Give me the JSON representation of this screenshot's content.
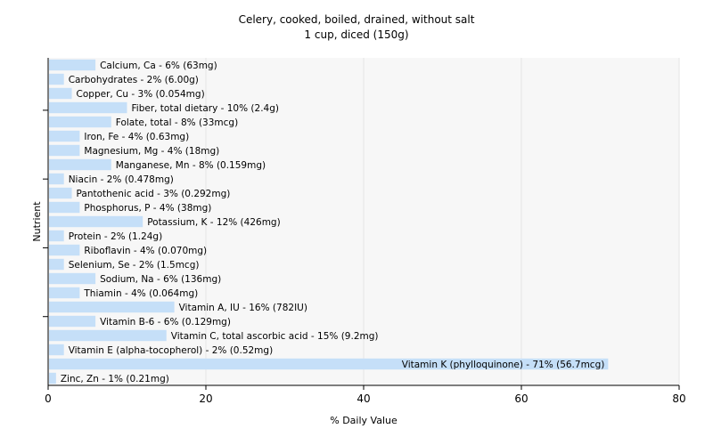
{
  "chart_data": {
    "type": "bar",
    "orientation": "horizontal",
    "title": "Celery, cooked, boiled, drained, without salt",
    "subtitle": "1 cup, diced (150g)",
    "xlabel": "% Daily Value",
    "ylabel": "Nutrient",
    "xlim": [
      0,
      80
    ],
    "xticks": [
      "0",
      "20",
      "40",
      "60",
      "80"
    ],
    "grid": true,
    "bar_color": "#c5dff8",
    "grid_color": "#e6e6e6",
    "plot_background": "#f7f7f7",
    "categories": [
      "Calcium, Ca",
      "Carbohydrates",
      "Copper, Cu",
      "Fiber, total dietary",
      "Folate, total",
      "Iron, Fe",
      "Magnesium, Mg",
      "Manganese, Mn",
      "Niacin",
      "Pantothenic acid",
      "Phosphorus, P",
      "Potassium, K",
      "Protein",
      "Riboflavin",
      "Selenium, Se",
      "Sodium, Na",
      "Thiamin",
      "Vitamin A, IU",
      "Vitamin B-6",
      "Vitamin C, total ascorbic acid",
      "Vitamin E (alpha-tocopherol)",
      "Vitamin K (phylloquinone)",
      "Zinc, Zn"
    ],
    "values": [
      6,
      2,
      3,
      10,
      8,
      4,
      4,
      8,
      2,
      3,
      4,
      12,
      2,
      4,
      2,
      6,
      4,
      16,
      6,
      15,
      2,
      71,
      1
    ],
    "labels": [
      "Calcium, Ca - 6% (63mg)",
      "Carbohydrates - 2% (6.00g)",
      "Copper, Cu - 3% (0.054mg)",
      "Fiber, total dietary - 10% (2.4g)",
      "Folate, total - 8% (33mcg)",
      "Iron, Fe - 4% (0.63mg)",
      "Magnesium, Mg - 4% (18mg)",
      "Manganese, Mn - 8% (0.159mg)",
      "Niacin - 2% (0.478mg)",
      "Pantothenic acid - 3% (0.292mg)",
      "Phosphorus, P - 4% (38mg)",
      "Potassium, K - 12% (426mg)",
      "Protein - 2% (1.24g)",
      "Riboflavin - 4% (0.070mg)",
      "Selenium, Se - 2% (1.5mcg)",
      "Sodium, Na - 6% (136mg)",
      "Thiamin - 4% (0.064mg)",
      "Vitamin A, IU - 16% (782IU)",
      "Vitamin B-6 - 6% (0.129mg)",
      "Vitamin C, total ascorbic acid - 15% (9.2mg)",
      "Vitamin E (alpha-tocopherol) - 2% (0.52mg)",
      "Vitamin K (phylloquinone) - 71% (56.7mcg)",
      "Zinc, Zn - 1% (0.21mg)"
    ]
  }
}
